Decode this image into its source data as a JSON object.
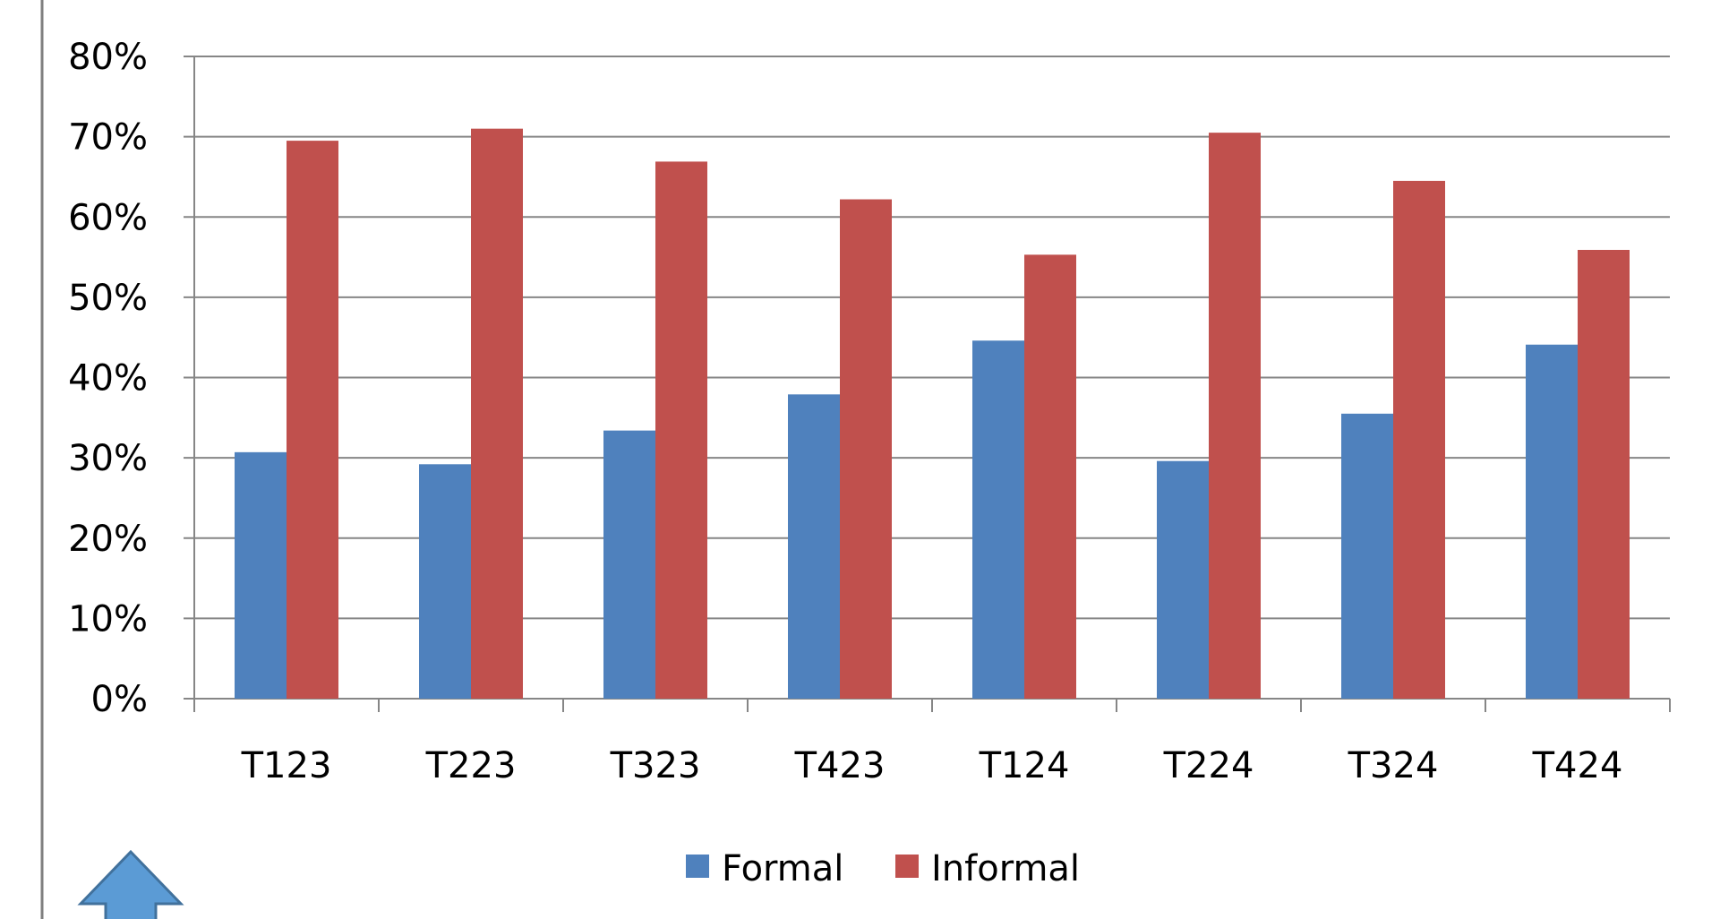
{
  "chart_data": {
    "type": "bar",
    "categories": [
      "T123",
      "T223",
      "T323",
      "T423",
      "T124",
      "T224",
      "T324",
      "T424"
    ],
    "series": [
      {
        "name": "Formal",
        "color": "#4F81BD",
        "values": [
          30.7,
          29.2,
          33.4,
          37.9,
          44.6,
          29.6,
          35.5,
          44.1
        ]
      },
      {
        "name": "Informal",
        "color": "#C0504D",
        "values": [
          69.5,
          71.0,
          66.9,
          62.2,
          55.3,
          70.5,
          64.5,
          55.9
        ]
      }
    ],
    "y_ticks": [
      "0%",
      "10%",
      "20%",
      "30%",
      "40%",
      "50%",
      "60%",
      "70%",
      "80%"
    ],
    "ylim": [
      0,
      80
    ],
    "y_unit": "%",
    "grid": true,
    "legend_position": "bottom"
  },
  "decorations": {
    "arrow": {
      "icon": "up-arrow-icon",
      "color": "#5B9BD5",
      "stroke": "#41719C"
    }
  }
}
